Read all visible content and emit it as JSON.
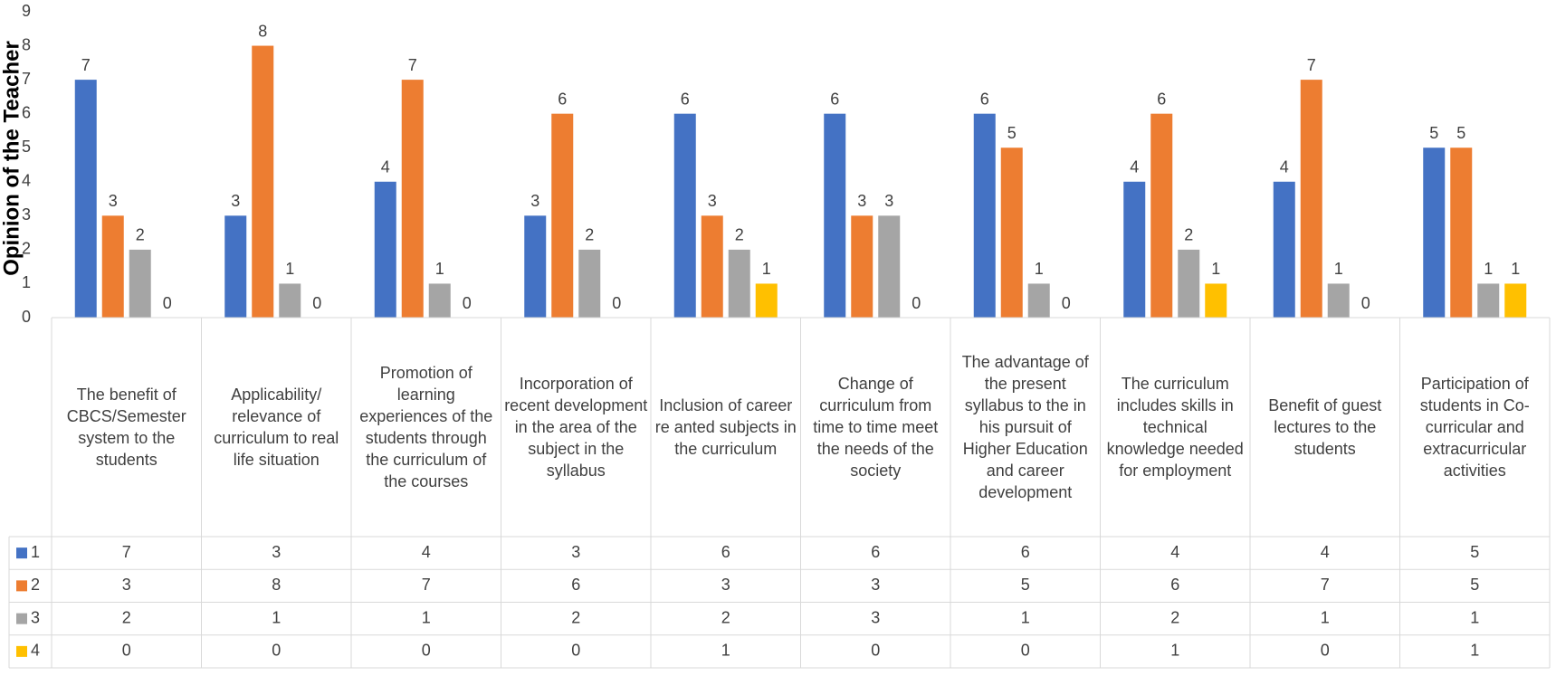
{
  "chart_data": {
    "type": "bar",
    "y_axis_label": "Opinion of the Teacher",
    "categories": [
      "The benefit of CBCS/Semester system to the students",
      "Applicability/ relevance of curriculum to real life situation",
      "Promotion of learning experiences of the students through the curriculum of the courses",
      "Incorporation of recent development in the area of the subject in the syllabus",
      "Inclusion of career re anted subjects in the curriculum",
      "Change of curriculum from time to time meet the needs of the society",
      "The advantage of the present syllabus to the in his pursuit of Higher Education and career development",
      "The curriculum includes skills in technical knowledge needed for employment",
      "Benefit of guest lectures to the students",
      "Participation of students in Co-curricular and extracurricular activities"
    ],
    "series": [
      {
        "name": "1",
        "color": "#4472c4",
        "values": [
          7,
          3,
          4,
          3,
          6,
          6,
          6,
          4,
          4,
          5
        ]
      },
      {
        "name": "2",
        "color": "#ed7d31",
        "values": [
          3,
          8,
          7,
          6,
          3,
          3,
          5,
          6,
          7,
          5
        ]
      },
      {
        "name": "3",
        "color": "#a5a5a5",
        "values": [
          2,
          1,
          1,
          2,
          2,
          3,
          1,
          2,
          1,
          1
        ]
      },
      {
        "name": "4",
        "color": "#ffc000",
        "values": [
          0,
          0,
          0,
          0,
          1,
          0,
          0,
          1,
          0,
          1
        ]
      }
    ],
    "ylim": [
      0,
      9
    ],
    "yticks": [
      0,
      1,
      2,
      3,
      4,
      5,
      6,
      7,
      8,
      9
    ],
    "grid": false,
    "data_table": true
  }
}
